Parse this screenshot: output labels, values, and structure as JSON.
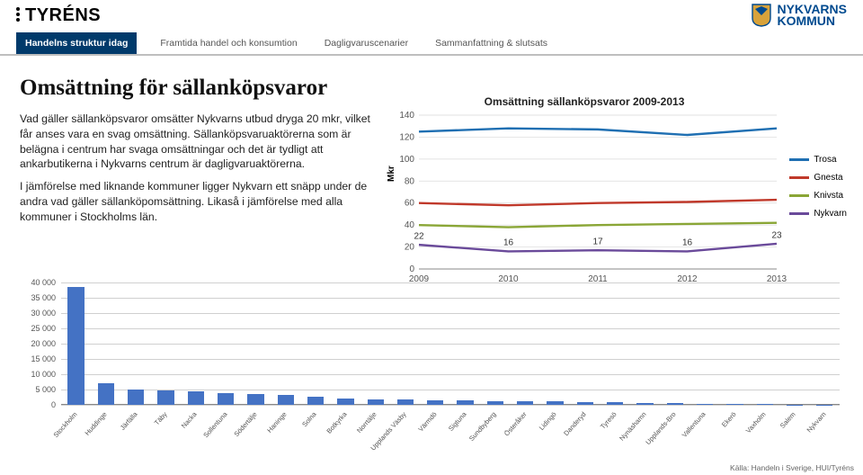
{
  "logos": {
    "tyrens": "TYRÉNS",
    "nykvarn_line1": "NYKVARNS",
    "nykvarn_line2": "KOMMUN"
  },
  "tabs": [
    {
      "label": "Handelns struktur idag",
      "active": true
    },
    {
      "label": "Framtida handel och konsumtion",
      "active": false
    },
    {
      "label": "Dagligvaruscenarier",
      "active": false
    },
    {
      "label": "Sammanfattning & slutsats",
      "active": false
    }
  ],
  "title": "Omsättning för sällanköpsvaror",
  "paragraphs": [
    "Vad gäller sällanköpsvaror omsätter Nykvarns utbud dryga 20 mkr, vilket får anses vara en svag omsättning. Sällanköpsvaruaktörerna som är belägna i centrum har svaga omsättningar och det är tydligt att ankarbutikerna i Nykvarns centrum är dagligvaruaktörerna.",
    "I jämförelse med liknande kommuner ligger Nykvarn ett snäpp under de andra vad gäller sällanköpomsättning. Likaså i jämförelse med alla kommuner i Stockholms län."
  ],
  "line_chart": {
    "title": "Omsättning sällanköpsvaror 2009-2013",
    "ylabel": "Mkr",
    "years": [
      "2009",
      "2010",
      "2011",
      "2012",
      "2013"
    ],
    "ylim": [
      0,
      140
    ],
    "ytick_step": 20,
    "series": [
      {
        "name": "Trosa",
        "color": "#1f6fb2",
        "values": [
          125,
          128,
          127,
          122,
          128
        ]
      },
      {
        "name": "Gnesta",
        "color": "#c0392b",
        "values": [
          60,
          58,
          60,
          61,
          63
        ]
      },
      {
        "name": "Knivsta",
        "color": "#8aa636",
        "values": [
          40,
          38,
          40,
          41,
          42
        ]
      },
      {
        "name": "Nykvarn",
        "color": "#6a4a9a",
        "values": [
          22,
          16,
          17,
          16,
          23
        ]
      }
    ],
    "data_labels": {
      "series": "Nykvarn",
      "values": [
        22,
        16,
        17,
        16,
        23
      ]
    },
    "axis_color": "#888",
    "grid_color": "#d9d9d9",
    "tick_fontsize": 10
  },
  "bar_chart": {
    "ylim": [
      0,
      40000
    ],
    "ytick_step": 5000,
    "bar_color": "#4472c4",
    "axis_color": "#888",
    "grid_color": "#d0d0d0",
    "categories": [
      "Stockholm",
      "Huddinge",
      "Järfälla",
      "Täby",
      "Nacka",
      "Sollentuna",
      "Södertälje",
      "Haninge",
      "Solna",
      "Botkyrka",
      "Norrtälje",
      "Upplands Väsby",
      "Värmdö",
      "Sigtuna",
      "Sundbyberg",
      "Österåker",
      "Lidingö",
      "Danderyd",
      "Tyresö",
      "Nynäshamn",
      "Upplands-Bro",
      "Vallentuna",
      "Ekerö",
      "Vaxholm",
      "Salem",
      "Nykvarn"
    ],
    "values": [
      38500,
      7200,
      5100,
      4800,
      4300,
      3800,
      3600,
      3300,
      2600,
      2100,
      1900,
      1700,
      1500,
      1400,
      1200,
      1150,
      1050,
      950,
      850,
      620,
      520,
      440,
      300,
      170,
      110,
      70
    ]
  },
  "source": "Källa: Handeln i Sverige, HUI/Tyréns"
}
